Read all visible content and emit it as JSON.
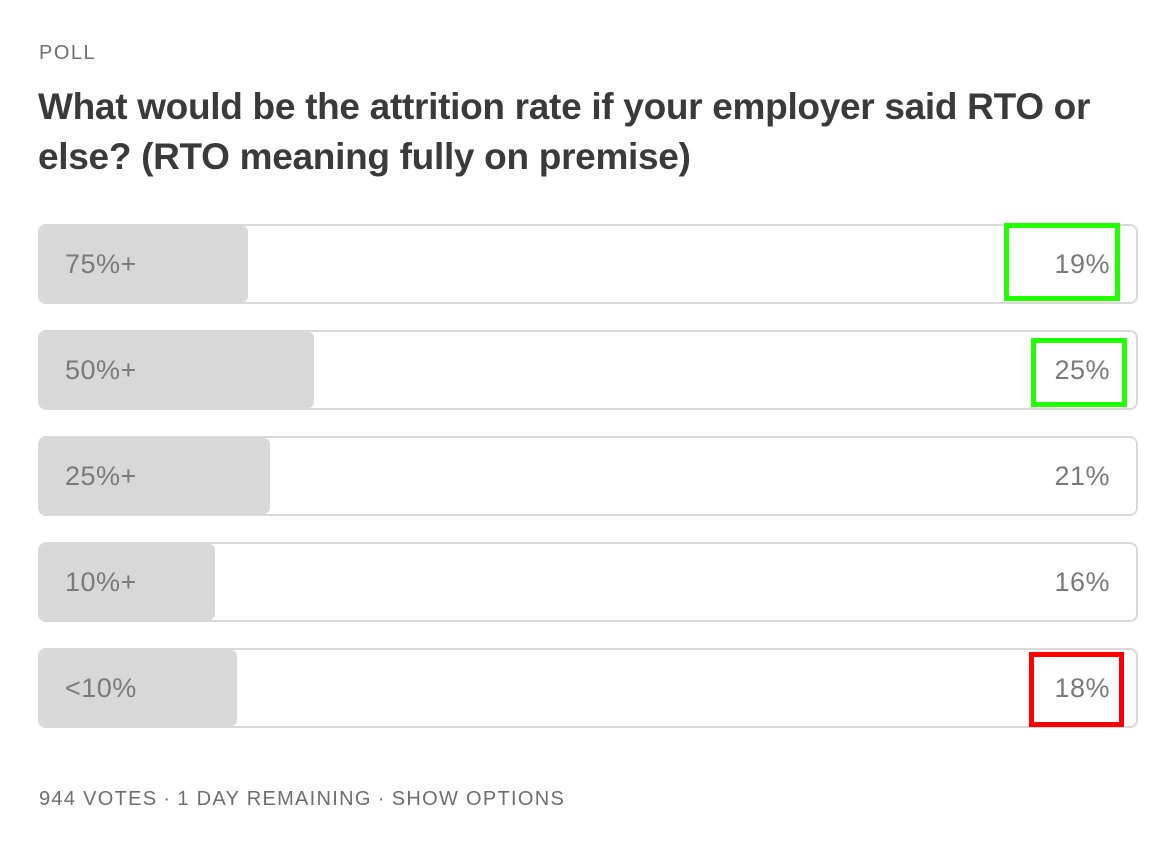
{
  "poll": {
    "label": "POLL",
    "question": "What would be the attrition rate if your employer said RTO or else? (RTO meaning fully on premise)",
    "options": [
      {
        "label": "75%+",
        "percent_text": "19%",
        "share": 0.19
      },
      {
        "label": "50%+",
        "percent_text": "25%",
        "share": 0.25
      },
      {
        "label": "25%+",
        "percent_text": "21%",
        "share": 0.21
      },
      {
        "label": "10%+",
        "percent_text": "16%",
        "share": 0.16
      },
      {
        "label": "<10%",
        "percent_text": "18%",
        "share": 0.18
      }
    ],
    "footer": {
      "votes": "944 VOTES",
      "separator": "·",
      "remaining": "1 DAY REMAINING",
      "show_options": "SHOW OPTIONS"
    }
  },
  "annotations": [
    {
      "option": 0,
      "color": "#22ff00"
    },
    {
      "option": 1,
      "color": "#22ff00"
    },
    {
      "option": 4,
      "color": "#ff0000"
    }
  ]
}
